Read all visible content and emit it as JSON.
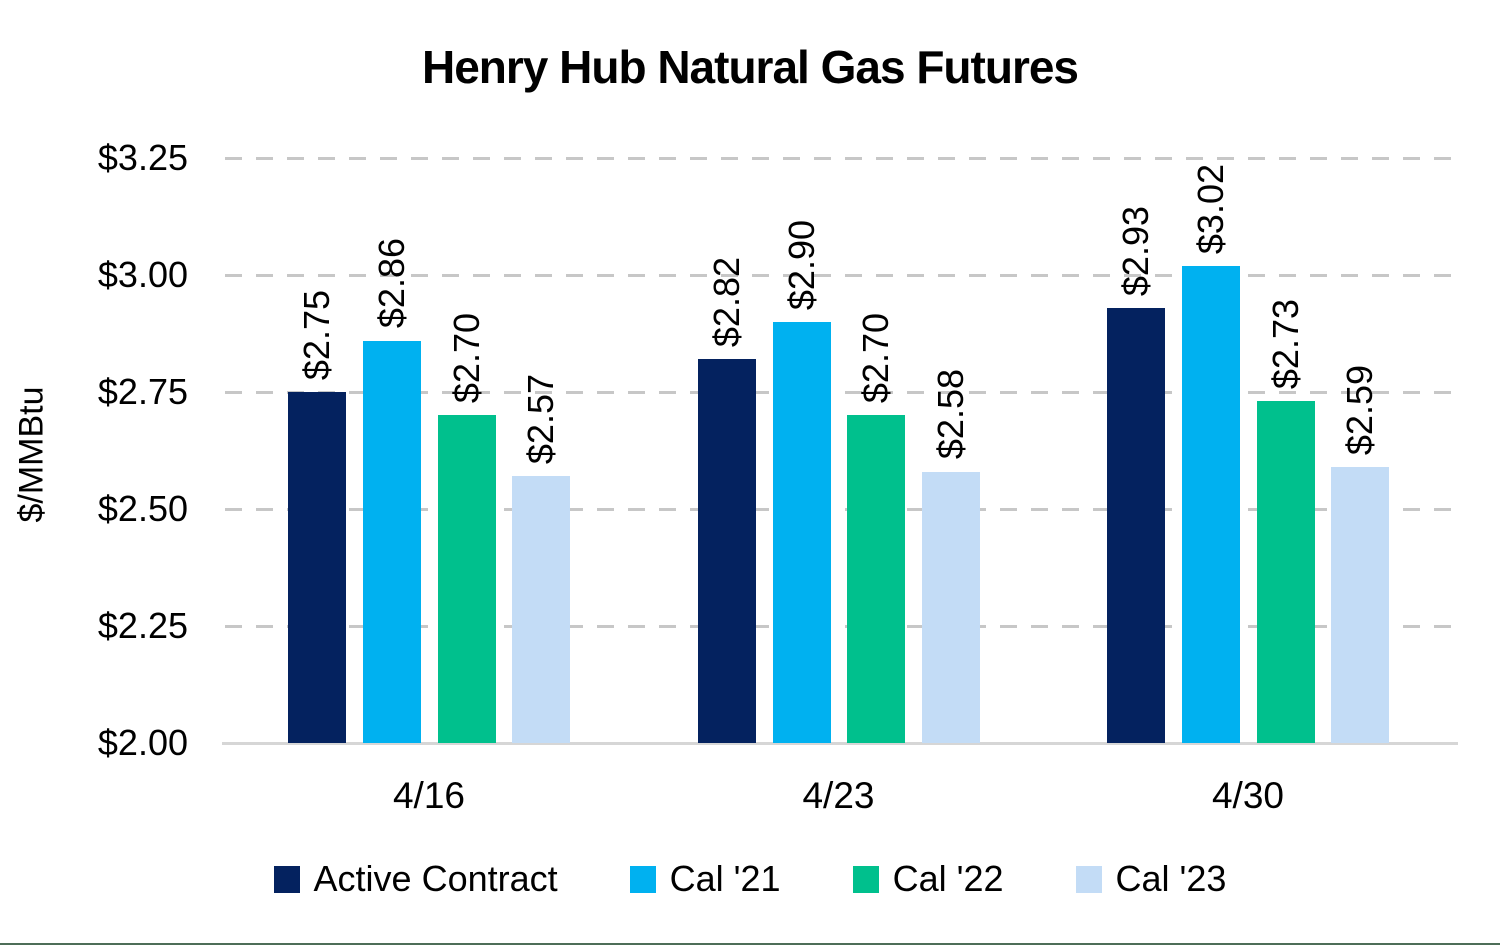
{
  "page": {
    "bottom_rule_color": "#4e6e58",
    "background": "#ffffff",
    "text_color": "#000000",
    "gridline_color": "#c7c7c7",
    "axis_line_color": "#d6d6d6"
  },
  "chart_data": {
    "type": "bar",
    "title": "Henry Hub Natural Gas Futures",
    "xlabel": "",
    "ylabel": "$/MMBtu",
    "categories": [
      "4/16",
      "4/23",
      "4/30"
    ],
    "series": [
      {
        "name": "Active Contract",
        "color": "#04225f",
        "values": [
          2.75,
          2.82,
          2.93
        ],
        "labels": [
          "$2.75",
          "$2.82",
          "$2.93"
        ]
      },
      {
        "name": "Cal '21",
        "color": "#00b1f0",
        "values": [
          2.86,
          2.9,
          3.02
        ],
        "labels": [
          "$2.86",
          "$2.90",
          "$3.02"
        ]
      },
      {
        "name": "Cal '22",
        "color": "#00c08d",
        "values": [
          2.7,
          2.7,
          2.73
        ],
        "labels": [
          "$2.70",
          "$2.70",
          "$2.73"
        ]
      },
      {
        "name": "Cal '23",
        "color": "#c3dcf6",
        "values": [
          2.57,
          2.58,
          2.59
        ],
        "labels": [
          "$2.57",
          "$2.58",
          "$2.59"
        ]
      }
    ],
    "ylim": [
      2.0,
      3.25
    ],
    "ytick_step": 0.25,
    "yticks": [
      {
        "value": 3.25,
        "label": "$3.25"
      },
      {
        "value": 3.0,
        "label": "$3.00"
      },
      {
        "value": 2.75,
        "label": "$2.75"
      },
      {
        "value": 2.5,
        "label": "$2.50"
      },
      {
        "value": 2.25,
        "label": "$2.25"
      },
      {
        "value": 2.0,
        "label": "$2.00"
      }
    ],
    "grid": "horizontal-dashed",
    "legend_position": "bottom",
    "value_labels": "rotated-90-above-bars"
  }
}
